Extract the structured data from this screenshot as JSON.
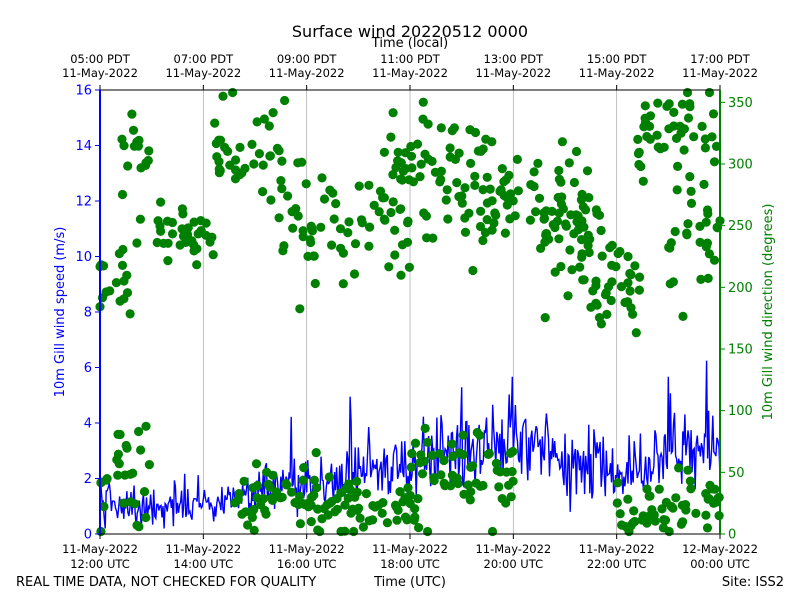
{
  "chart_data": {
    "type": "line+scatter",
    "title": "Surface wind 20220512 0000",
    "top_axis_label": "Time (local)",
    "xlabel": "Time (UTC)",
    "ylabel_left": "10m Gill wind speed (m/s)",
    "ylabel_right": "10m Gill wind direction (degrees)",
    "x_range_hours_utc": [
      12,
      24
    ],
    "ylim_left": [
      0,
      16
    ],
    "ylim_right": [
      0,
      360
    ],
    "yticks_left": [
      0,
      2,
      4,
      6,
      8,
      10,
      12,
      14,
      16
    ],
    "yticks_right": [
      0,
      50,
      100,
      150,
      200,
      250,
      300,
      350
    ],
    "bottom_ticks": [
      {
        "hour": 12,
        "date": "11-May-2022",
        "time": "12:00 UTC"
      },
      {
        "hour": 14,
        "date": "11-May-2022",
        "time": "14:00 UTC"
      },
      {
        "hour": 16,
        "date": "11-May-2022",
        "time": "16:00 UTC"
      },
      {
        "hour": 18,
        "date": "11-May-2022",
        "time": "18:00 UTC"
      },
      {
        "hour": 20,
        "date": "11-May-2022",
        "time": "20:00 UTC"
      },
      {
        "hour": 22,
        "date": "11-May-2022",
        "time": "22:00 UTC"
      },
      {
        "hour": 24,
        "date": "12-May-2022",
        "time": "00:00 UTC"
      }
    ],
    "top_ticks": [
      {
        "hour": 12,
        "time": "05:00 PDT",
        "date": "11-May-2022"
      },
      {
        "hour": 14,
        "time": "07:00 PDT",
        "date": "11-May-2022"
      },
      {
        "hour": 16,
        "time": "09:00 PDT",
        "date": "11-May-2022"
      },
      {
        "hour": 18,
        "time": "11:00 PDT",
        "date": "11-May-2022"
      },
      {
        "hour": 20,
        "time": "13:00 PDT",
        "date": "11-May-2022"
      },
      {
        "hour": 22,
        "time": "15:00 PDT",
        "date": "11-May-2022"
      },
      {
        "hour": 24,
        "time": "17:00 PDT",
        "date": "11-May-2022"
      }
    ],
    "series": [
      {
        "name": "wind speed",
        "axis": "left",
        "color": "#0000ff",
        "style": "line",
        "hours": [
          12.0,
          12.25,
          12.5,
          12.75,
          13.0,
          13.25,
          13.5,
          13.75,
          14.0,
          14.25,
          14.5,
          14.75,
          15.0,
          15.25,
          15.5,
          15.75,
          16.0,
          16.25,
          16.5,
          16.75,
          17.0,
          17.25,
          17.5,
          17.75,
          18.0,
          18.25,
          18.5,
          18.75,
          19.0,
          19.25,
          19.5,
          19.75,
          20.0,
          20.25,
          20.5,
          20.75,
          21.0,
          21.25,
          21.5,
          21.75,
          22.0,
          22.25,
          22.5,
          22.75,
          23.0,
          23.25,
          23.5,
          23.75,
          24.0
        ],
        "values": [
          1.5,
          1.0,
          0.9,
          1.0,
          1.1,
          1.0,
          1.2,
          1.0,
          1.2,
          1.1,
          1.3,
          1.2,
          1.5,
          1.7,
          1.6,
          1.9,
          1.5,
          1.7,
          1.8,
          2.2,
          2.0,
          2.3,
          2.2,
          2.6,
          2.5,
          2.4,
          2.9,
          2.8,
          3.0,
          3.1,
          3.2,
          3.4,
          3.3,
          3.0,
          3.4,
          3.1,
          2.6,
          2.7,
          2.5,
          2.3,
          2.1,
          2.4,
          2.0,
          2.6,
          3.0,
          3.1,
          3.2,
          3.0,
          3.2
        ]
      },
      {
        "name": "wind direction",
        "axis": "right",
        "color": "#008000",
        "style": "scatter",
        "clusters": [
          {
            "hours": [
              12.0,
              12.6
            ],
            "mean": 205,
            "spread": 25
          },
          {
            "hours": [
              12.0,
              13.0
            ],
            "mean": 45,
            "spread": 40
          },
          {
            "hours": [
              12.4,
              13.0
            ],
            "mean": 300,
            "spread": 35
          },
          {
            "hours": [
              13.0,
              14.2
            ],
            "mean": 240,
            "spread": 22
          },
          {
            "hours": [
              14.2,
              15.6
            ],
            "mean": 310,
            "spread": 40
          },
          {
            "hours": [
              14.6,
              16.2
            ],
            "mean": 30,
            "spread": 25
          },
          {
            "hours": [
              15.5,
              18.0
            ],
            "mean": 250,
            "spread": 45
          },
          {
            "hours": [
              16.0,
              18.2
            ],
            "mean": 20,
            "spread": 20
          },
          {
            "hours": [
              17.5,
              19.5
            ],
            "mean": 300,
            "spread": 45
          },
          {
            "hours": [
              18.0,
              20.0
            ],
            "mean": 50,
            "spread": 30
          },
          {
            "hours": [
              19.0,
              21.5
            ],
            "mean": 270,
            "spread": 40
          },
          {
            "hours": [
              20.5,
              22.0
            ],
            "mean": 240,
            "spread": 35
          },
          {
            "hours": [
              21.5,
              22.5
            ],
            "mean": 200,
            "spread": 30
          },
          {
            "hours": [
              22.0,
              23.2
            ],
            "mean": 20,
            "spread": 20
          },
          {
            "hours": [
              22.4,
              24.0
            ],
            "mean": 330,
            "spread": 30
          },
          {
            "hours": [
              23.0,
              24.0
            ],
            "mean": 240,
            "spread": 40
          },
          {
            "hours": [
              23.2,
              24.0
            ],
            "mean": 25,
            "spread": 20
          }
        ]
      }
    ]
  },
  "notes": {
    "left": "REAL TIME DATA, NOT CHECKED FOR QUALITY",
    "center": "Time (UTC)",
    "right": "Site: ISS2"
  }
}
